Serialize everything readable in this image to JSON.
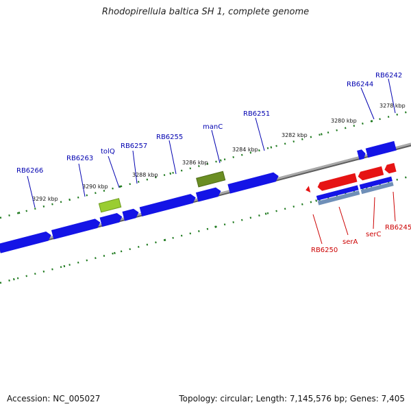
{
  "title": "Rhodopirellula baltica SH 1, complete genome",
  "footer": {
    "accession": "Accession: NC_005027",
    "summary": "Topology: circular; Length: 7,145,576 bp; Genes: 7,405"
  },
  "colors": {
    "forward_gene": "#1414e6",
    "reverse_gene": "#e61414",
    "rna_gene": "#6b8e23",
    "highlight_gene": "#9acd32",
    "backbone": "#8c8c8c",
    "tick": "#1f7a1f",
    "forward_label": "#0000b0",
    "reverse_label": "#cc0000"
  },
  "scale_labels": [
    {
      "text": "3292 kbp"
    },
    {
      "text": "3290 kbp"
    },
    {
      "text": "3288 kbp"
    },
    {
      "text": "3286 kbp"
    },
    {
      "text": "3284 kbp"
    },
    {
      "text": "3282 kbp"
    },
    {
      "text": "3280 kbp"
    },
    {
      "text": "3278 kbp"
    }
  ],
  "forward_labels": [
    {
      "text": "RB6266"
    },
    {
      "text": "RB6263"
    },
    {
      "text": "tolQ"
    },
    {
      "text": "RB6257"
    },
    {
      "text": "RB6255"
    },
    {
      "text": "manC"
    },
    {
      "text": "RB6251"
    },
    {
      "text": "RB6244"
    },
    {
      "text": "RB6242"
    }
  ],
  "reverse_labels": [
    {
      "text": "RB6250"
    },
    {
      "text": "serA"
    },
    {
      "text": "serC"
    },
    {
      "text": "RB6245"
    }
  ]
}
